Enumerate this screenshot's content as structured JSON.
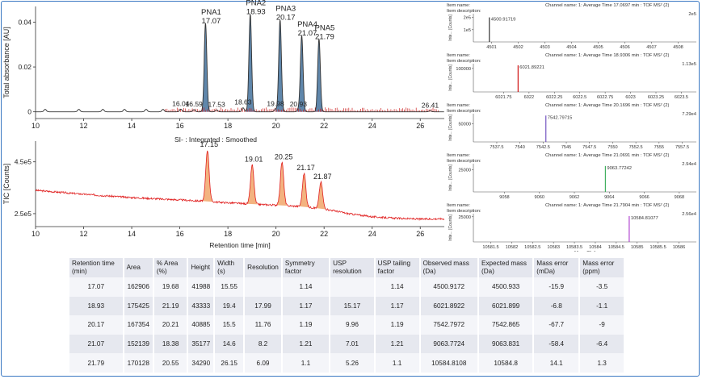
{
  "colors": {
    "frame": "#3a78c2",
    "uv_trace": "#333333",
    "uv_peak_fill": "#2b5f8f",
    "uv_baseline": "#cc2222",
    "tic_trace": "#e02020",
    "tic_fill": "#f0a060",
    "table_header": "#e4e6ee",
    "ms_lines": [
      "#222222",
      "#cc0000",
      "#6644bb",
      "#33aa55",
      "#aa33cc"
    ]
  },
  "chart_data": [
    {
      "id": "uv",
      "type": "line",
      "ylabel": "Total absorbance [AU]",
      "xlabel": "",
      "xlim": [
        10,
        27
      ],
      "ylim": [
        -0.003,
        0.047
      ],
      "xticks": [
        "10",
        "12",
        "14",
        "16",
        "18",
        "20",
        "22",
        "24",
        "26"
      ],
      "yticks": [
        "0",
        "0.02",
        "0.04"
      ],
      "peaks": [
        {
          "label": "PNA1",
          "rt": "17.07",
          "x": 17.07,
          "height": 0.0395
        },
        {
          "label": "PNA2",
          "rt": "18.93",
          "x": 18.93,
          "height": 0.0435
        },
        {
          "label": "PNA3",
          "rt": "20.17",
          "x": 20.17,
          "height": 0.041
        },
        {
          "label": "PNA4",
          "rt": "21.07",
          "x": 21.07,
          "height": 0.034
        },
        {
          "label": "PNA5",
          "rt": "21.79",
          "x": 21.79,
          "height": 0.0325
        }
      ],
      "minor_peaks": [
        {
          "rt": "16.04",
          "x": 16.04,
          "height": 0.0012
        },
        {
          "rt": "16.59",
          "x": 16.59,
          "height": 0.001
        },
        {
          "rt": "17.53",
          "x": 17.53,
          "height": 0.0008
        },
        {
          "rt": "18.63",
          "x": 18.63,
          "height": 0.0018
        },
        {
          "rt": "19.98",
          "x": 19.98,
          "height": 0.0012
        },
        {
          "rt": "20.93",
          "x": 20.93,
          "height": 0.001
        },
        {
          "rt": "26.41",
          "x": 26.41,
          "height": 0.0005
        }
      ],
      "small_bumps": [
        10.4,
        11.8,
        12.8,
        13.7,
        14.6,
        15.3
      ]
    },
    {
      "id": "tic",
      "type": "line",
      "title": "SI- : Integrated : Smoothed",
      "ylabel": "TIC [Counts]",
      "xlabel": "Retention time [min]",
      "xlim": [
        10,
        27
      ],
      "ylim": [
        200000,
        530000
      ],
      "xticks": [
        "10",
        "12",
        "14",
        "16",
        "18",
        "20",
        "22",
        "24",
        "26"
      ],
      "yticks": [
        {
          "label": "4.5e5",
          "value": 450000
        },
        {
          "label": "2.5e5",
          "value": 250000
        }
      ],
      "baseline": [
        [
          10,
          340000
        ],
        [
          12,
          325000
        ],
        [
          14,
          312000
        ],
        [
          16,
          303000
        ],
        [
          17,
          298000
        ],
        [
          18,
          292000
        ],
        [
          19,
          287000
        ],
        [
          20,
          283000
        ],
        [
          21,
          278000
        ],
        [
          22,
          268000
        ],
        [
          22.5,
          260000
        ],
        [
          23,
          250000
        ],
        [
          24,
          238000
        ],
        [
          25,
          232000
        ],
        [
          26,
          229000
        ],
        [
          27,
          230000
        ]
      ],
      "peaks": [
        {
          "rt": "17.15",
          "x": 17.15,
          "apex": 495000
        },
        {
          "rt": "19.01",
          "x": 19.01,
          "apex": 438000
        },
        {
          "rt": "20.25",
          "x": 20.25,
          "apex": 448000
        },
        {
          "rt": "21.17",
          "x": 21.17,
          "apex": 405000
        },
        {
          "rt": "21.87",
          "x": 21.87,
          "apex": 372000
        }
      ]
    },
    {
      "id": "ms",
      "type": "bar",
      "panels": [
        {
          "item_name": "Item name:",
          "item_desc": "Item description:",
          "channel": "Channel name: 1: Average Time 17.0697 min : TOF MS² (2)",
          "max_label": "2e5",
          "ylabel": "Inte... [Counts]",
          "yticks": [
            "2e5",
            "1e5"
          ],
          "xticks": [
            "4501",
            "4502",
            "4503",
            "4504",
            "4505",
            "4506",
            "4507",
            "4508"
          ],
          "xlim": [
            4500.5,
            4508.5
          ],
          "ymax": 230000,
          "peak_label": "4500.91719",
          "peak_x": 4500.91719,
          "peak_y": 200000,
          "color_index": 0,
          "xlabel": ""
        },
        {
          "item_name": "Item name:",
          "item_desc": "Item description:",
          "channel": "Channel name: 1: Average Time 18.9306 min : TOF MS² (2)",
          "max_label": "1.13e5",
          "ylabel": "Inte... [Counts]",
          "yticks": [
            "100000"
          ],
          "xticks": [
            "6021.75",
            "6022",
            "6022.25",
            "6022.5",
            "6022.75",
            "6023",
            "6023.25",
            "6023.5"
          ],
          "xlim": [
            6021.5,
            6023.6
          ],
          "ymax": 120000,
          "peak_label": "6021.89221",
          "peak_x": 6021.89221,
          "peak_y": 113000,
          "color_index": 1,
          "xlabel": ""
        },
        {
          "item_name": "Item name:",
          "item_desc": "Item description:",
          "channel": "Channel name: 1: Average Time 20.1696 min : TOF MS² (2)",
          "max_label": "7.29e4",
          "ylabel": "Inte... [Counts]",
          "yticks": [
            "50000"
          ],
          "xticks": [
            "7537.5",
            "7540",
            "7542.5",
            "7545",
            "7547.5",
            "7550",
            "7552.5",
            "7555",
            "7557.5"
          ],
          "xlim": [
            7535.5,
            7558.5
          ],
          "ymax": 78000,
          "peak_label": "7542.79715",
          "peak_x": 7542.79715,
          "peak_y": 72900,
          "color_index": 2,
          "xlabel": ""
        },
        {
          "item_name": "Item name:",
          "item_desc": "Item description:",
          "channel": "Channel name: 1: Average Time 21.0691 min : TOF MS² (2)",
          "max_label": "2.94e4",
          "ylabel": "Inte... [Counts]",
          "yticks": [
            "25000"
          ],
          "xticks": [
            "9058",
            "9060",
            "9062",
            "9064",
            "9066",
            "9068"
          ],
          "xlim": [
            9056.5,
            9068.7
          ],
          "ymax": 32000,
          "peak_label": "9063.77242",
          "peak_x": 9063.77242,
          "peak_y": 29400,
          "color_index": 3,
          "xlabel": ""
        },
        {
          "item_name": "Item name:",
          "item_desc": "Item description:",
          "channel": "Channel name: 1: Average Time 21.7904 min : TOF MS² (2)",
          "max_label": "2.56e4",
          "ylabel": "Inte... [Counts]",
          "yticks": [
            "25000"
          ],
          "xticks": [
            "10581.5",
            "10582",
            "10582.5",
            "10583",
            "10583.5",
            "10584",
            "10584.5",
            "10585",
            "10585.5",
            "10586"
          ],
          "xlim": [
            10581.2,
            10586.3
          ],
          "ymax": 28000,
          "peak_label": "10584.81077",
          "peak_x": 10584.81077,
          "peak_y": 25600,
          "color_index": 4,
          "xlabel": "Mass [Da]"
        }
      ]
    },
    {
      "id": "results-table",
      "type": "table",
      "headers": [
        "Retention time (min)",
        "Area",
        "% Area (%)",
        "Height",
        "Width (s)",
        "Resolution",
        "Symmetry factor",
        "USP resolution",
        "USP tailing factor",
        "Observed mass (Da)",
        "Expected mass (Da)",
        "Mass error (mDa)",
        "Mass error (ppm)"
      ],
      "rows": [
        [
          "17.07",
          "162906",
          "19.68",
          "41988",
          "15.55",
          "",
          "1.14",
          "",
          "1.14",
          "4500.9172",
          "4500.933",
          "-15.9",
          "-3.5"
        ],
        [
          "18.93",
          "175425",
          "21.19",
          "43333",
          "19.4",
          "17.99",
          "1.17",
          "15.17",
          "1.17",
          "6021.8922",
          "6021.899",
          "-6.8",
          "-1.1"
        ],
        [
          "20.17",
          "167354",
          "20.21",
          "40885",
          "15.5",
          "11.76",
          "1.19",
          "9.96",
          "1.19",
          "7542.7972",
          "7542.865",
          "-67.7",
          "-9"
        ],
        [
          "21.07",
          "152139",
          "18.38",
          "35177",
          "14.6",
          "8.2",
          "1.21",
          "7.01",
          "1.21",
          "9063.7724",
          "9063.831",
          "-58.4",
          "-6.4"
        ],
        [
          "21.79",
          "170128",
          "20.55",
          "34290",
          "26.15",
          "6.09",
          "1.1",
          "5.26",
          "1.1",
          "10584.8108",
          "10584.8",
          "14.1",
          "1.3"
        ]
      ]
    }
  ]
}
